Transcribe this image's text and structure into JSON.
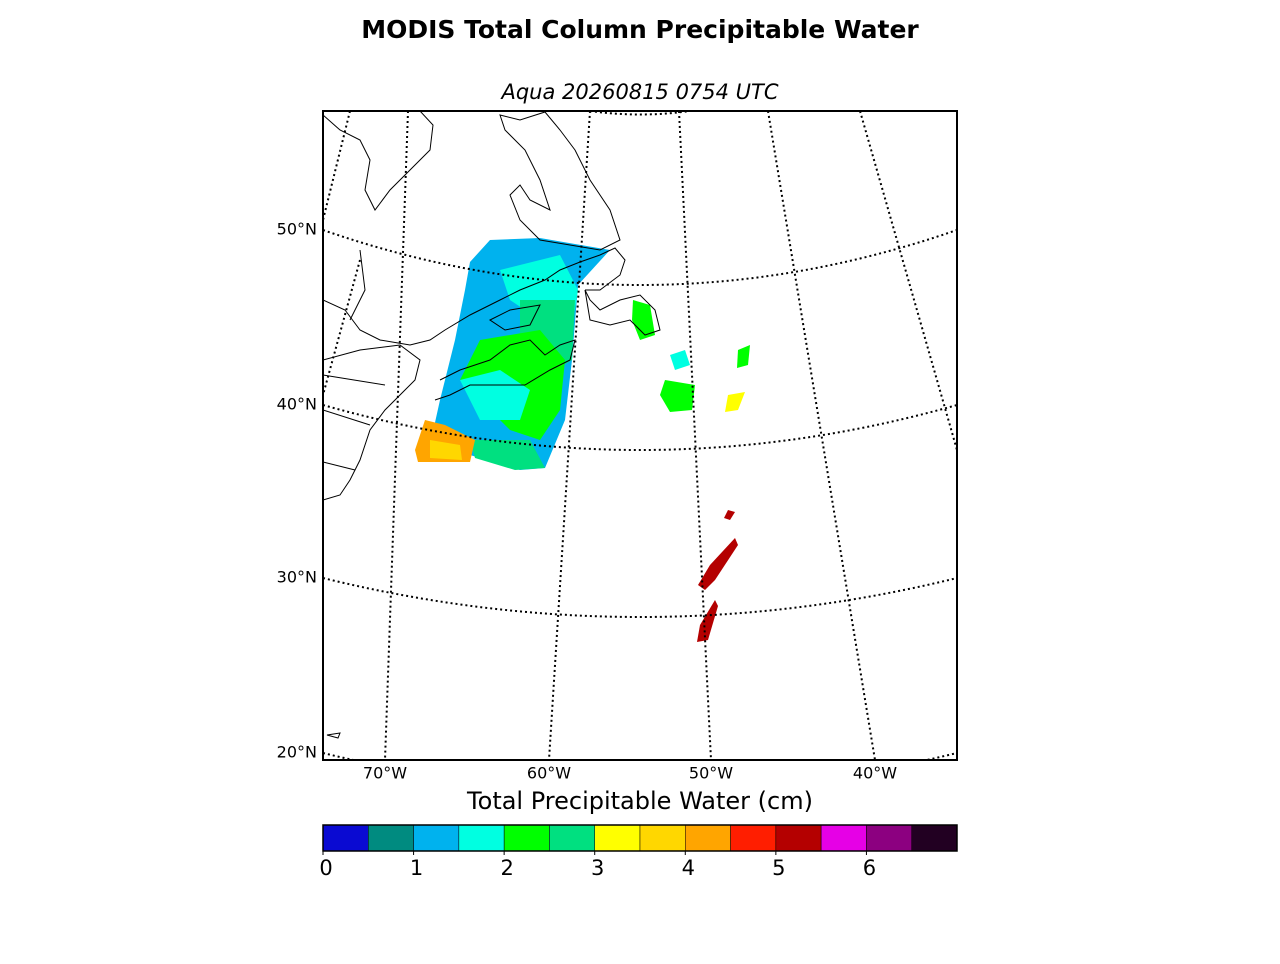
{
  "title": "MODIS Total Column Precipitable Water",
  "subtitle": "Aqua 20260815 0754 UTC",
  "map": {
    "lat_labels": [
      "50°N",
      "40°N",
      "30°N",
      "20°N"
    ],
    "lon_labels": [
      "70°W",
      "60°W",
      "50°W",
      "40°W"
    ]
  },
  "colorbar": {
    "label": "Total Precipitable Water (cm)",
    "bounds": [
      0,
      0.5,
      1,
      1.5,
      2,
      2.5,
      3,
      3.5,
      4,
      4.5,
      5,
      5.5,
      6,
      6.5,
      7
    ],
    "colors": [
      "#0a0ad2",
      "#008b80",
      "#00b2ee",
      "#00ffe1",
      "#00ff00",
      "#00e080",
      "#ffff00",
      "#ffd700",
      "#ffa500",
      "#ff1e00",
      "#b40000",
      "#e600e6",
      "#8c0080",
      "#220022"
    ],
    "ticks": [
      0,
      1,
      2,
      3,
      4,
      5,
      6
    ]
  }
}
